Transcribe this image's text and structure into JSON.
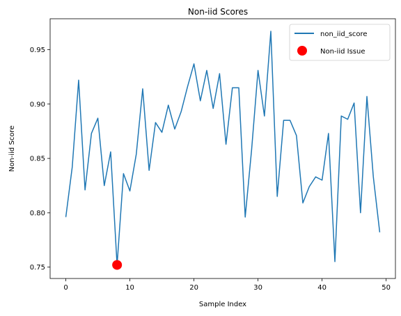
{
  "chart_data": {
    "type": "line",
    "title": "Non-iid Scores",
    "xlabel": "Sample Index",
    "ylabel": "Non-iid Score",
    "xlim": [
      -2.45,
      51.45
    ],
    "ylim": [
      0.7395,
      0.9785
    ],
    "xticks": [
      0,
      10,
      20,
      30,
      40,
      50
    ],
    "yticks": [
      0.75,
      0.8,
      0.85,
      0.9,
      0.95
    ],
    "ytick_labels": [
      "0.75",
      "0.80",
      "0.85",
      "0.90",
      "0.95"
    ],
    "grid": false,
    "legend_position": "top-right",
    "series": [
      {
        "name": "non_iid_score",
        "kind": "line",
        "color": "#1f77b4",
        "x": [
          0,
          1,
          2,
          3,
          4,
          5,
          6,
          7,
          8,
          9,
          10,
          11,
          12,
          13,
          14,
          15,
          16,
          17,
          18,
          19,
          20,
          21,
          22,
          23,
          24,
          25,
          26,
          27,
          28,
          29,
          30,
          31,
          32,
          33,
          34,
          35,
          36,
          37,
          38,
          39,
          40,
          41,
          42,
          43,
          44,
          45,
          46,
          47,
          48,
          49
        ],
        "values": [
          0.796,
          0.842,
          0.922,
          0.821,
          0.873,
          0.887,
          0.825,
          0.856,
          0.752,
          0.836,
          0.82,
          0.854,
          0.914,
          0.839,
          0.883,
          0.874,
          0.899,
          0.877,
          0.893,
          0.916,
          0.937,
          0.903,
          0.931,
          0.896,
          0.928,
          0.863,
          0.915,
          0.915,
          0.796,
          0.858,
          0.931,
          0.889,
          0.967,
          0.815,
          0.885,
          0.885,
          0.871,
          0.809,
          0.824,
          0.833,
          0.83,
          0.873,
          0.755,
          0.889,
          0.886,
          0.901,
          0.8,
          0.907,
          0.833,
          0.782
        ]
      },
      {
        "name": "Non-iid Issue",
        "kind": "scatter",
        "color": "#ff0000",
        "x": [
          8
        ],
        "values": [
          0.752
        ]
      }
    ]
  }
}
